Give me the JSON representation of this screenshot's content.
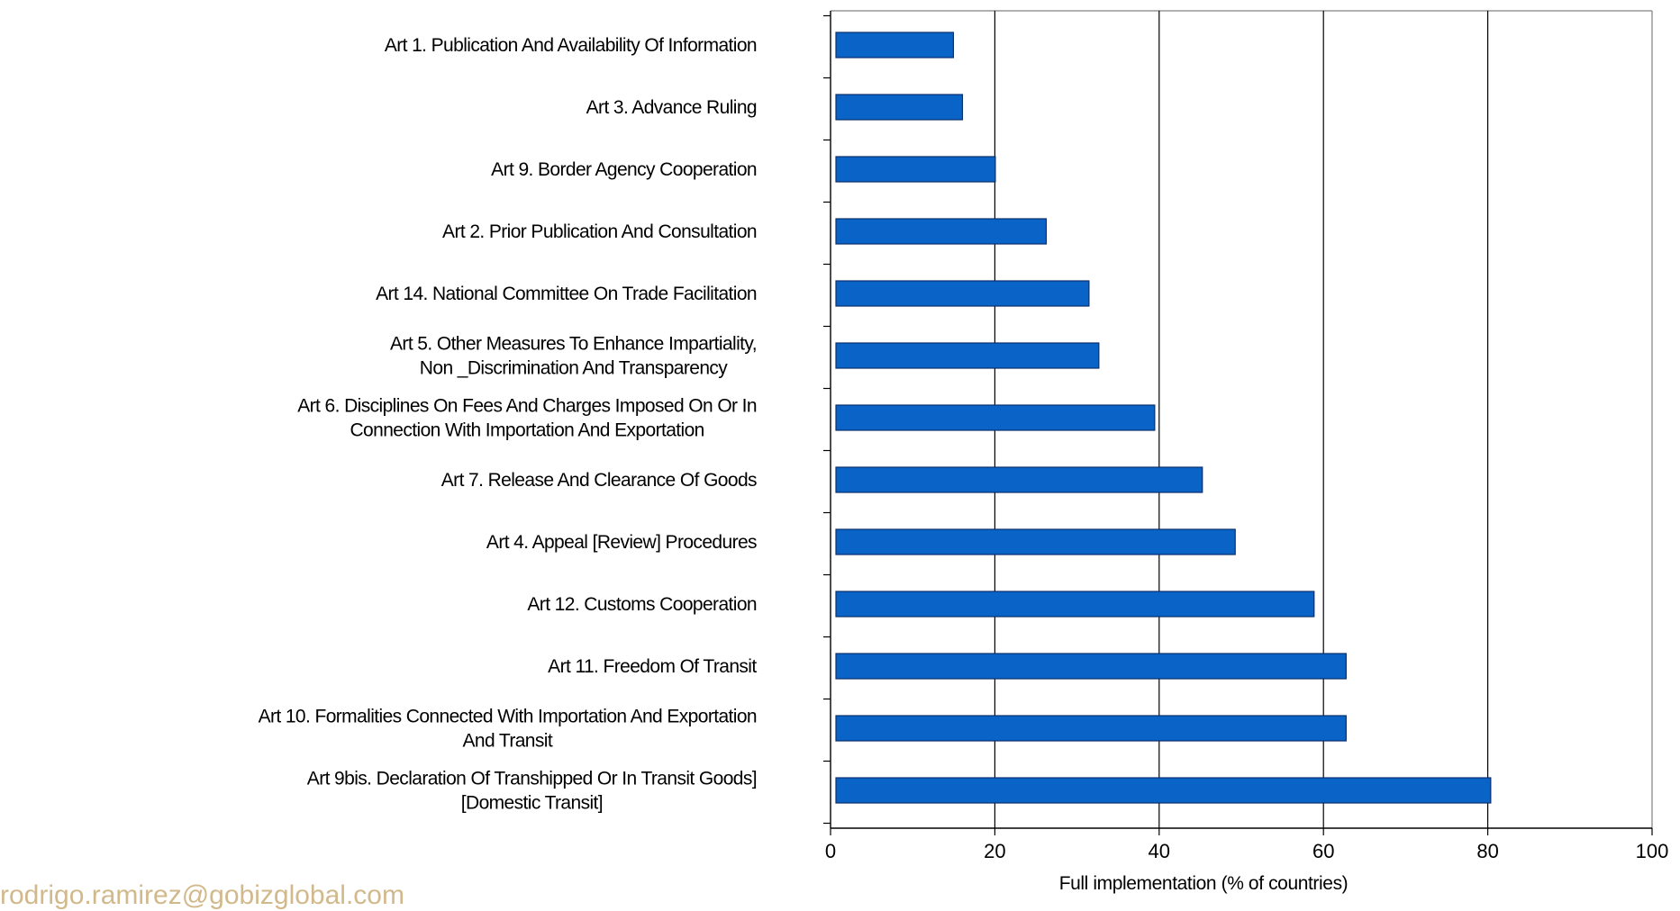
{
  "chart_data": {
    "type": "bar",
    "orientation": "horizontal",
    "categories": [
      [
        "Art 1. Publication And Availability Of Information"
      ],
      [
        "Art 3. Advance Ruling"
      ],
      [
        "Art 9. Border Agency Cooperation"
      ],
      [
        "Art 2. Prior Publication And Consultation"
      ],
      [
        "Art 14. National Committee On Trade Facilitation"
      ],
      [
        "Art 5. Other Measures To Enhance Impartiality,",
        "Non _Discrimination And Transparency"
      ],
      [
        "Art 6. Disciplines On Fees And Charges Imposed On Or In",
        "Connection With Importation And Exportation"
      ],
      [
        "Art 7. Release And Clearance Of Goods"
      ],
      [
        "Art 4. Appeal [Review] Procedures"
      ],
      [
        "Art 12. Customs Cooperation"
      ],
      [
        "Art 11. Freedom Of Transit"
      ],
      [
        "Art 10. Formalities Connected With Importation And Exportation",
        "And Transit"
      ],
      [
        "Art 9bis. Declaration Of Transhipped Or In Transit Goods]",
        "[Domestic Transit]"
      ]
    ],
    "values": [
      14.3,
      15.4,
      19.4,
      25.6,
      30.8,
      32.0,
      38.8,
      44.6,
      48.6,
      58.2,
      62.1,
      62.1,
      79.7
    ],
    "xlabel": "Full implementation (% of countries)",
    "xlim": [
      0,
      100
    ],
    "xticks": [
      "0",
      "20",
      "40",
      "60",
      "80",
      "100"
    ],
    "grid": "vertical",
    "bar_color": "#0a64c8",
    "bar_edge_color": "#0a2f6b"
  },
  "footer": {
    "email": "rodrigo.ramirez@gobizglobal.com",
    "color": "#d2b98c"
  }
}
